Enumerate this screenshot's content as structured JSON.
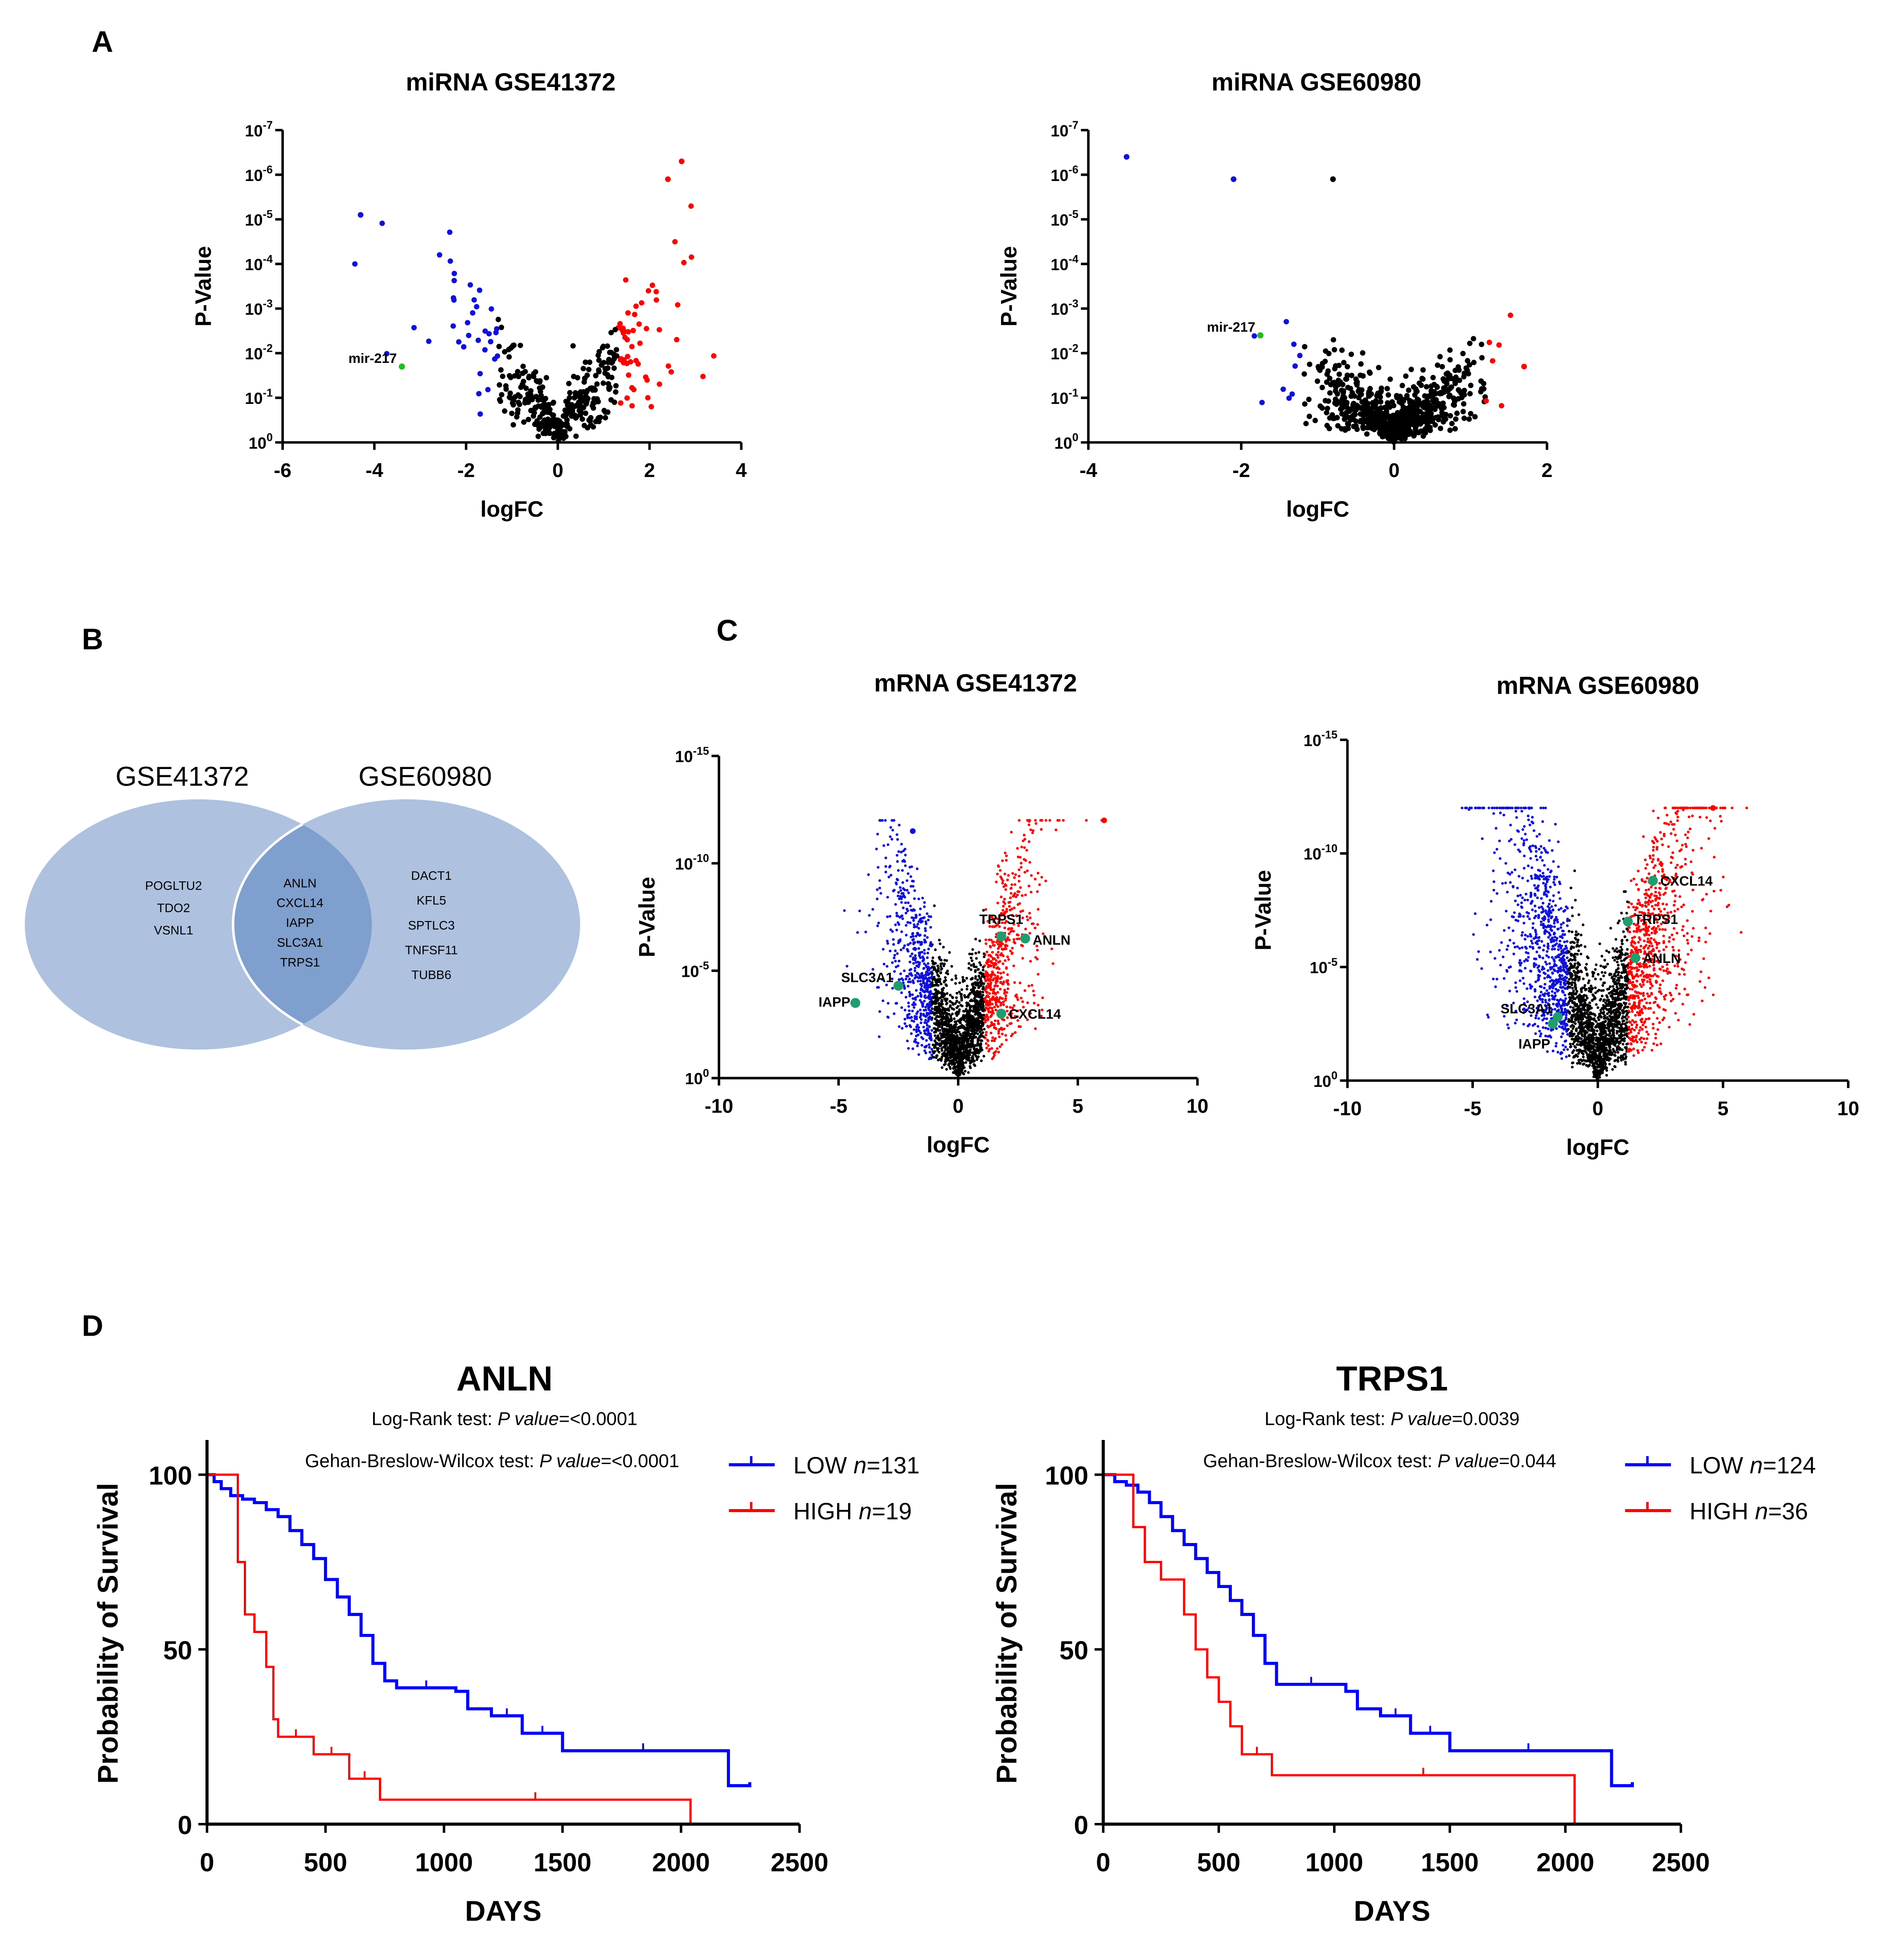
{
  "panel_labels": {
    "a": "A",
    "b": "B",
    "c": "C",
    "d": "D"
  },
  "venn": {
    "left_title": "GSE41372",
    "right_title": "GSE60980",
    "left_only": [
      "POGLTU2",
      "TDO2",
      "VSNL1"
    ],
    "shared": [
      "ANLN",
      "CXCL14",
      "IAPP",
      "SLC3A1",
      "TRPS1"
    ],
    "right_only": [
      "DACT1",
      "KFL5",
      "SPTLC3",
      "TNFSF11",
      "TUBB6"
    ],
    "colors": {
      "circle": "#aec2e0",
      "overlap": "#7f9fcf"
    }
  },
  "chart_data": [
    {
      "id": "a1",
      "type": "scatter",
      "title": "miRNA GSE41372",
      "xlabel": "logFC",
      "ylabel": "P-Value",
      "xlim": [
        -6,
        4
      ],
      "xticks": [
        "-6",
        "-4",
        "-2",
        "0",
        "2",
        "4"
      ],
      "ylim_exp": [
        0,
        -7
      ],
      "yticks": [
        "10^0",
        "10^-1",
        "10^-2",
        "10^-3",
        "10^-4",
        "10^-5",
        "10^-6",
        "10^-7"
      ],
      "colors": {
        "up": "#ff0000",
        "down": "#1010dd",
        "ns": "#000000",
        "highlight": "#22bb22"
      },
      "fc_cut": 1.3,
      "spread": [
        1.1,
        0.9
      ],
      "n_background": 420,
      "highlighted": [
        {
          "label": "mir-217",
          "logFC": -3.4,
          "neglog10p": 1.7
        }
      ],
      "notable_points": [
        {
          "logFC": -4.3,
          "neglog10p": 5.1,
          "class": "down"
        },
        {
          "logFC": 2.7,
          "neglog10p": 6.3,
          "class": "up"
        },
        {
          "logFC": 2.4,
          "neglog10p": 5.9,
          "class": "up"
        }
      ]
    },
    {
      "id": "a2",
      "type": "scatter",
      "title": "miRNA GSE60980",
      "xlabel": "logFC",
      "ylabel": "P-Value",
      "xlim": [
        -4,
        2
      ],
      "xticks": [
        "-4",
        "-2",
        "0",
        "2"
      ],
      "ylim_exp": [
        0,
        -7
      ],
      "yticks": [
        "10^0",
        "10^-1",
        "10^-2",
        "10^-3",
        "10^-4",
        "10^-5",
        "10^-6",
        "10^-7"
      ],
      "colors": {
        "up": "#ff0000",
        "down": "#1010dd",
        "ns": "#000000",
        "highlight": "#22bb22"
      },
      "fc_cut": 1.2,
      "spread": [
        0.55,
        0.9
      ],
      "n_background": 700,
      "highlighted": [
        {
          "label": "mir-217",
          "logFC": -1.75,
          "neglog10p": 2.4
        }
      ],
      "notable_points": [
        {
          "logFC": -3.5,
          "neglog10p": 6.4,
          "class": "down"
        },
        {
          "logFC": -2.1,
          "neglog10p": 5.9,
          "class": "down"
        },
        {
          "logFC": -0.8,
          "neglog10p": 5.9,
          "class": "ns"
        },
        {
          "logFC": 1.7,
          "neglog10p": 1.7,
          "class": "up"
        }
      ]
    },
    {
      "id": "c1",
      "type": "scatter",
      "title": "mRNA GSE41372",
      "xlabel": "logFC",
      "ylabel": "P-Value",
      "xlim": [
        -10,
        10
      ],
      "xticks": [
        "-10",
        "-5",
        "0",
        "5",
        "10"
      ],
      "ylim_exp": [
        0,
        -15
      ],
      "yticks": [
        "10^0",
        "10^-5",
        "10^-10",
        "10^-15"
      ],
      "colors": {
        "up": "#ff0000",
        "down": "#1010dd",
        "ns": "#000000",
        "highlight": "#1e9e6e"
      },
      "fc_cut": 1.1,
      "spread": [
        1.4,
        3.3
      ],
      "n_background": 2600,
      "highlighted": [
        {
          "label": "TRPS1",
          "logFC": 1.8,
          "neglog10p": 6.6
        },
        {
          "label": "ANLN",
          "logFC": 2.8,
          "neglog10p": 6.5
        },
        {
          "label": "SLC3A1",
          "logFC": -2.5,
          "neglog10p": 4.3
        },
        {
          "label": "IAPP",
          "logFC": -4.3,
          "neglog10p": 3.5
        },
        {
          "label": "CXCL14",
          "logFC": 1.8,
          "neglog10p": 3.0
        }
      ],
      "notable_points": [
        {
          "logFC": 6.1,
          "neglog10p": 12.0,
          "class": "up"
        },
        {
          "logFC": -1.9,
          "neglog10p": 11.5,
          "class": "down"
        }
      ]
    },
    {
      "id": "c2",
      "type": "scatter",
      "title": "mRNA GSE60980",
      "xlabel": "logFC",
      "ylabel": "P-Value",
      "xlim": [
        -10,
        10
      ],
      "xticks": [
        "-10",
        "-5",
        "0",
        "5",
        "10"
      ],
      "ylim_exp": [
        0,
        -15
      ],
      "yticks": [
        "10^0",
        "10^-5",
        "10^-10",
        "10^-15"
      ],
      "colors": {
        "up": "#ff0000",
        "down": "#1010dd",
        "ns": "#000000",
        "highlight": "#1e9e6e"
      },
      "fc_cut": 1.2,
      "spread": [
        1.8,
        3.6
      ],
      "n_background": 3200,
      "highlighted": [
        {
          "label": "CXCL14",
          "logFC": 2.2,
          "neglog10p": 8.8
        },
        {
          "label": "TRPS1",
          "logFC": 1.2,
          "neglog10p": 7.0
        },
        {
          "label": "ANLN",
          "logFC": 1.5,
          "neglog10p": 5.4
        },
        {
          "label": "SLC3A1",
          "logFC": -1.6,
          "neglog10p": 2.8
        },
        {
          "label": "IAPP",
          "logFC": -1.8,
          "neglog10p": 2.5
        }
      ],
      "notable_points": [
        {
          "logFC": 4.6,
          "neglog10p": 12.0,
          "class": "up"
        }
      ]
    },
    {
      "id": "d1",
      "type": "line",
      "title": "ANLN",
      "xlabel": "DAYS",
      "ylabel": "Probability of Survival",
      "xlim": [
        0,
        2500
      ],
      "ylim": [
        0,
        100
      ],
      "xticks": [
        "0",
        "500",
        "1000",
        "1500",
        "2000",
        "2500"
      ],
      "yticks": [
        "0",
        "50",
        "100"
      ],
      "stat1": {
        "label": "Log-Rank  test: ",
        "p_label": "P value",
        "value": "=<0.0001"
      },
      "stat2": {
        "label": "Gehan-Breslow-Wilcox test: ",
        "p_label": "P value",
        "value": "=<0.0001"
      },
      "series": [
        {
          "name": "LOW",
          "n_label": "n",
          "n": "=131",
          "color": "#0000ff",
          "x": [
            0,
            30,
            60,
            100,
            150,
            200,
            250,
            300,
            350,
            400,
            450,
            500,
            550,
            600,
            650,
            700,
            750,
            800,
            1050,
            1100,
            1200,
            1330,
            1500,
            2180,
            2200,
            2290
          ],
          "y": [
            100,
            98,
            96,
            94,
            93,
            92,
            90,
            88,
            84,
            80,
            76,
            70,
            65,
            60,
            54,
            46,
            41,
            39,
            38,
            33,
            31,
            26,
            21,
            21,
            11,
            12
          ]
        },
        {
          "name": "HIGH",
          "n_label": "n",
          "n": "=19",
          "color": "#ff0000",
          "x": [
            0,
            100,
            130,
            160,
            200,
            250,
            280,
            300,
            450,
            600,
            730,
            2040
          ],
          "y": [
            100,
            100,
            75,
            60,
            55,
            45,
            30,
            25,
            20,
            13,
            7,
            0
          ]
        }
      ]
    },
    {
      "id": "d2",
      "type": "line",
      "title": "TRPS1",
      "xlabel": "DAYS",
      "ylabel": "Probability of Survival",
      "xlim": [
        0,
        2500
      ],
      "ylim": [
        0,
        100
      ],
      "xticks": [
        "0",
        "500",
        "1000",
        "1500",
        "2000",
        "2500"
      ],
      "yticks": [
        "0",
        "50",
        "100"
      ],
      "stat1": {
        "label": "Log-Rank  test: ",
        "p_label": "P value",
        "value": "=0.0039"
      },
      "stat2": {
        "label": "Gehan-Breslow-Wilcox test: ",
        "p_label": "P value",
        "value": "=0.044"
      },
      "series": [
        {
          "name": "LOW",
          "n_label": "n",
          "n": "=124",
          "color": "#0000ff",
          "x": [
            0,
            50,
            100,
            150,
            200,
            250,
            300,
            350,
            400,
            450,
            500,
            550,
            600,
            650,
            700,
            750,
            1050,
            1100,
            1200,
            1330,
            1500,
            2180,
            2200,
            2290
          ],
          "y": [
            100,
            98,
            97,
            95,
            92,
            88,
            84,
            80,
            76,
            72,
            68,
            64,
            60,
            54,
            46,
            40,
            38,
            33,
            31,
            26,
            21,
            21,
            11,
            12
          ]
        },
        {
          "name": "HIGH",
          "n_label": "n",
          "n": "=36",
          "color": "#ff0000",
          "x": [
            0,
            100,
            130,
            180,
            250,
            350,
            400,
            450,
            500,
            550,
            600,
            730,
            2040
          ],
          "y": [
            100,
            100,
            85,
            75,
            70,
            60,
            50,
            42,
            35,
            28,
            20,
            14,
            0
          ]
        }
      ]
    }
  ]
}
